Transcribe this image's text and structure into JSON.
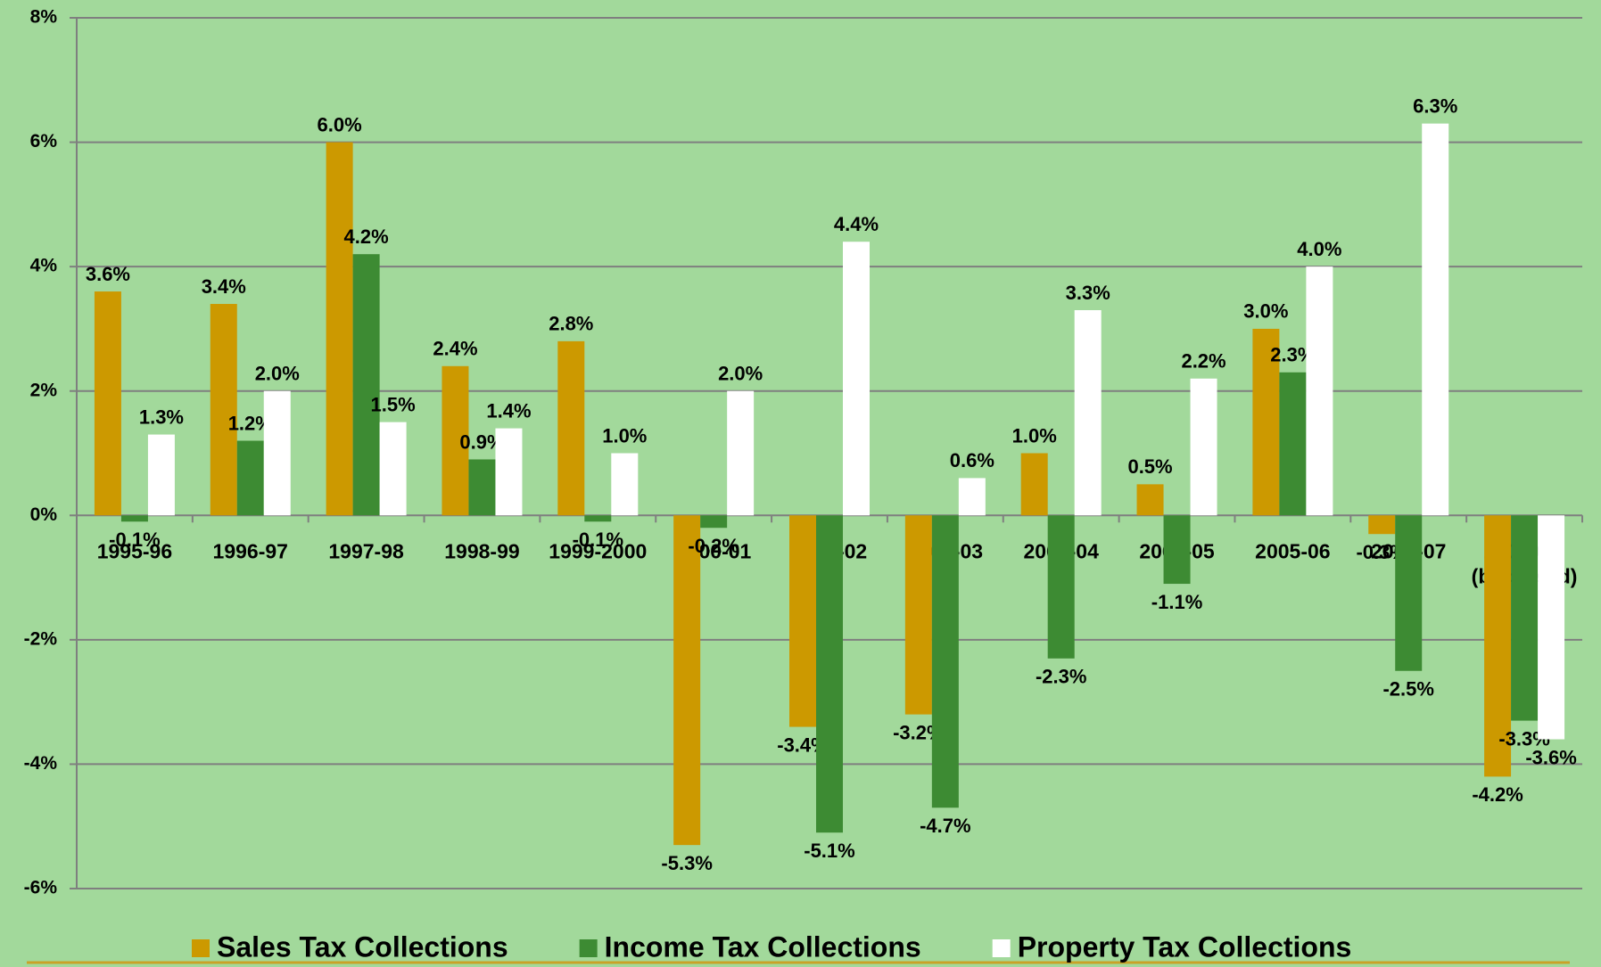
{
  "chart_data": {
    "type": "bar",
    "categories": [
      "1995-96",
      "1996-97",
      "1997-98",
      "1998-99",
      "1999-2000",
      "2000-01",
      "2001-02",
      "2002-03",
      "2003-04",
      "2004-05",
      "2005-06",
      "2006-07",
      "2007-08 (budgeted)"
    ],
    "series": [
      {
        "name": "Sales Tax Collections",
        "color": "#cc9900",
        "values": [
          3.6,
          3.4,
          6.0,
          2.4,
          2.8,
          -5.3,
          -3.4,
          -3.2,
          1.0,
          0.5,
          3.0,
          -0.3,
          -4.2
        ],
        "value_labels": [
          "3.6%",
          "3.4%",
          "6.0%",
          "2.4%",
          "2.8%",
          "-5.3%",
          "-3.4%",
          "-3.2%",
          "1.0%",
          "0.5%",
          "3.0%",
          "-0.3%",
          "-4.2%"
        ]
      },
      {
        "name": "Income Tax Collections",
        "color": "#3d8b33",
        "values": [
          -0.1,
          1.2,
          4.2,
          0.9,
          -0.1,
          -0.2,
          -5.1,
          -4.7,
          -2.3,
          -1.1,
          2.3,
          -2.5,
          -3.3
        ],
        "value_labels": [
          "-0.1%",
          "1.2%",
          "4.2%",
          "0.9%",
          "-0.1%",
          "-0.2%",
          "-5.1%",
          "-4.7%",
          "-2.3%",
          "-1.1%",
          "2.3%",
          "-2.5%",
          "-3.3%"
        ]
      },
      {
        "name": "Property Tax Collections",
        "color": "#ffffff",
        "values": [
          1.3,
          2.0,
          1.5,
          1.4,
          1.0,
          2.0,
          4.4,
          0.6,
          3.3,
          2.2,
          4.0,
          6.3,
          -3.6
        ],
        "value_labels": [
          "1.3%",
          "2.0%",
          "1.5%",
          "1.4%",
          "1.0%",
          "2.0%",
          "4.4%",
          "0.6%",
          "3.3%",
          "2.2%",
          "4.0%",
          "6.3%",
          "-3.6%"
        ]
      }
    ],
    "ylim": [
      -6,
      8
    ],
    "yticks": [
      {
        "value": -6,
        "label": "-6%"
      },
      {
        "value": -4,
        "label": "-4%"
      },
      {
        "value": -2,
        "label": "-2%"
      },
      {
        "value": 0,
        "label": "0%"
      },
      {
        "value": 2,
        "label": "2%"
      },
      {
        "value": 4,
        "label": "4%"
      },
      {
        "value": 6,
        "label": "6%"
      },
      {
        "value": 8,
        "label": "8%"
      }
    ],
    "grid": true,
    "legend": "bottom"
  }
}
